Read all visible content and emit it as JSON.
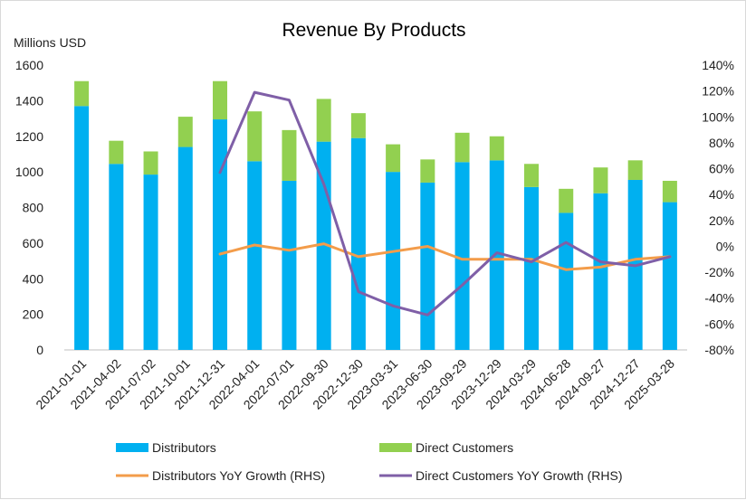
{
  "chart_data": {
    "type": "bar",
    "title": "Revenue  By Products",
    "ylabel": "Millions USD",
    "ylim": [
      0,
      1600
    ],
    "y_ticks": [
      "0",
      "200",
      "400",
      "600",
      "800",
      "1000",
      "1200",
      "1400",
      "1600"
    ],
    "y2lim": [
      -80,
      140
    ],
    "y2_ticks": [
      "-80%",
      "-60%",
      "-40%",
      "-20%",
      "0%",
      "20%",
      "40%",
      "60%",
      "80%",
      "100%",
      "120%",
      "140%"
    ],
    "categories": [
      "2021-01-01",
      "2021-04-02",
      "2021-07-02",
      "2021-10-01",
      "2021-12-31",
      "2022-04-01",
      "2022-07-01",
      "2022-09-30",
      "2022-12-30",
      "2023-03-31",
      "2023-06-30",
      "2023-09-29",
      "2023-12-29",
      "2024-03-29",
      "2024-06-28",
      "2024-09-27",
      "2024-12-27",
      "2025-03-28"
    ],
    "stacked": true,
    "series": [
      {
        "name": "Distributors",
        "type": "bar",
        "axis": "left",
        "color": "#00b0f0",
        "values": [
          1370,
          1045,
          985,
          1140,
          1295,
          1060,
          950,
          1170,
          1190,
          1000,
          940,
          1055,
          1065,
          915,
          770,
          880,
          955,
          830
        ]
      },
      {
        "name": "Direct Customers",
        "type": "bar",
        "axis": "left",
        "color": "#92d050",
        "values": [
          140,
          130,
          130,
          170,
          215,
          280,
          285,
          240,
          140,
          155,
          130,
          165,
          135,
          130,
          135,
          145,
          110,
          120
        ]
      },
      {
        "name": "Distributors YoY Growth (RHS)",
        "type": "line",
        "axis": "right",
        "color": "#f39c4a",
        "values": [
          null,
          null,
          null,
          null,
          -6,
          1,
          -3,
          2,
          -8,
          -4,
          0,
          -10,
          -10,
          -10,
          -18,
          -16,
          -10,
          -8
        ]
      },
      {
        "name": "Direct Customers YoY Growth (RHS)",
        "type": "line",
        "axis": "right",
        "color": "#7f5fa7",
        "values": [
          null,
          null,
          null,
          null,
          57,
          119,
          113,
          48,
          -35,
          -46,
          -53,
          -30,
          -5,
          -12,
          3,
          -12,
          -15,
          -8
        ]
      }
    ],
    "legend": {
      "position": "bottom",
      "entries": [
        "Distributors",
        "Direct Customers",
        "Distributors YoY Growth (RHS)",
        "Direct Customers YoY Growth (RHS)"
      ]
    }
  }
}
